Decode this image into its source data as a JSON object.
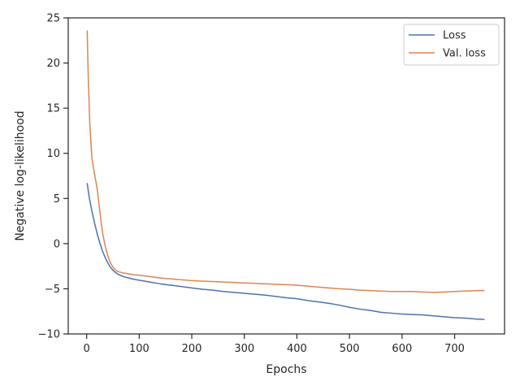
{
  "chart_data": {
    "type": "line",
    "title": "",
    "xlabel": "Epochs",
    "ylabel": "Negative log-likelihood",
    "xlim": [
      -35,
      795
    ],
    "ylim": [
      -10,
      25
    ],
    "xticks": [
      0,
      100,
      200,
      300,
      400,
      500,
      600,
      700
    ],
    "yticks": [
      -10,
      -5,
      0,
      5,
      10,
      15,
      20,
      25
    ],
    "grid": false,
    "legend_position": "top-right",
    "series": [
      {
        "name": "Loss",
        "color": "#4c72b0",
        "x": [
          1,
          5,
          10,
          15,
          20,
          25,
          30,
          35,
          40,
          45,
          50,
          55,
          60,
          70,
          80,
          90,
          100,
          120,
          140,
          160,
          180,
          200,
          220,
          240,
          260,
          280,
          300,
          320,
          340,
          360,
          380,
          400,
          420,
          440,
          460,
          480,
          500,
          520,
          540,
          560,
          580,
          600,
          620,
          640,
          660,
          680,
          700,
          720,
          740,
          757
        ],
        "y": [
          6.7,
          5.1,
          3.6,
          2.3,
          1.1,
          0.1,
          -0.8,
          -1.5,
          -2.1,
          -2.6,
          -2.95,
          -3.2,
          -3.4,
          -3.65,
          -3.8,
          -3.95,
          -4.05,
          -4.25,
          -4.45,
          -4.6,
          -4.75,
          -4.9,
          -5.05,
          -5.15,
          -5.3,
          -5.4,
          -5.5,
          -5.6,
          -5.7,
          -5.85,
          -6.0,
          -6.1,
          -6.3,
          -6.45,
          -6.6,
          -6.8,
          -7.05,
          -7.25,
          -7.4,
          -7.6,
          -7.7,
          -7.8,
          -7.85,
          -7.9,
          -8.0,
          -8.1,
          -8.2,
          -8.25,
          -8.35,
          -8.4
        ]
      },
      {
        "name": "Val. loss",
        "color": "#dd8452",
        "x": [
          1,
          3,
          6,
          10,
          15,
          20,
          25,
          30,
          35,
          40,
          45,
          50,
          55,
          60,
          70,
          80,
          90,
          100,
          120,
          140,
          160,
          180,
          200,
          220,
          240,
          260,
          280,
          300,
          320,
          340,
          360,
          380,
          400,
          420,
          440,
          460,
          480,
          500,
          520,
          540,
          560,
          580,
          600,
          620,
          640,
          660,
          680,
          700,
          720,
          740,
          757
        ],
        "y": [
          23.6,
          18.5,
          13.2,
          9.5,
          7.7,
          6.1,
          3.6,
          1.3,
          -0.2,
          -1.3,
          -2.1,
          -2.6,
          -2.95,
          -3.1,
          -3.25,
          -3.35,
          -3.45,
          -3.5,
          -3.65,
          -3.8,
          -3.9,
          -4.0,
          -4.1,
          -4.15,
          -4.2,
          -4.25,
          -4.3,
          -4.35,
          -4.4,
          -4.45,
          -4.5,
          -4.55,
          -4.6,
          -4.7,
          -4.8,
          -4.9,
          -5.0,
          -5.05,
          -5.15,
          -5.2,
          -5.25,
          -5.3,
          -5.3,
          -5.3,
          -5.35,
          -5.4,
          -5.35,
          -5.3,
          -5.25,
          -5.2,
          -5.2
        ]
      }
    ]
  }
}
